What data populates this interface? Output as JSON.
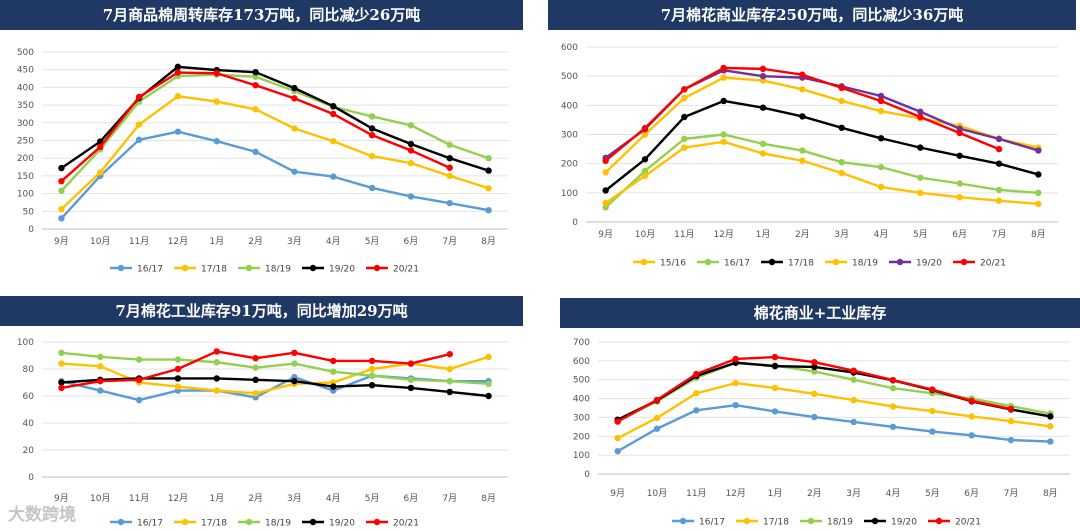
{
  "watermark": "大数跨境",
  "chart_data": [
    {
      "type": "line",
      "title": "7月商品棉周转库存173万吨，同比减少26万吨",
      "categories": [
        "9月",
        "10月",
        "11月",
        "12月",
        "1月",
        "2月",
        "3月",
        "4月",
        "5月",
        "6月",
        "7月",
        "8月"
      ],
      "ylim": [
        0,
        500
      ],
      "ystep": 50,
      "series": [
        {
          "name": "16/17",
          "color": "#5b9bd5",
          "values": [
            30,
            150,
            252,
            275,
            248,
            218,
            162,
            148,
            116,
            92,
            73,
            53
          ]
        },
        {
          "name": "17/18",
          "color": "#ffc000",
          "values": [
            56,
            160,
            295,
            375,
            360,
            338,
            284,
            248,
            206,
            186,
            150,
            115
          ]
        },
        {
          "name": "18/19",
          "color": "#92d050",
          "values": [
            108,
            225,
            360,
            432,
            436,
            430,
            390,
            345,
            318,
            293,
            238,
            200
          ]
        },
        {
          "name": "19/20",
          "color": "#000000",
          "values": [
            172,
            247,
            370,
            458,
            449,
            443,
            398,
            347,
            284,
            240,
            200,
            165
          ]
        },
        {
          "name": "20/21",
          "color": "#ff0000",
          "values": [
            135,
            232,
            373,
            442,
            440,
            406,
            369,
            325,
            265,
            222,
            173,
            null
          ]
        }
      ]
    },
    {
      "type": "line",
      "title": "7月棉花商业库存250万吨，同比减少36万吨",
      "categories": [
        "9月",
        "10月",
        "11月",
        "12月",
        "1月",
        "2月",
        "3月",
        "4月",
        "5月",
        "6月",
        "7月",
        "8月"
      ],
      "ylim": [
        0,
        600
      ],
      "ystep": 100,
      "series": [
        {
          "name": "15/16",
          "color": "#ffc000",
          "values": [
            170,
            300,
            425,
            495,
            485,
            455,
            415,
            380,
            355,
            330,
            285,
            255
          ]
        },
        {
          "name": "16/17",
          "color": "#92d050",
          "values": [
            50,
            175,
            285,
            300,
            268,
            245,
            205,
            188,
            152,
            132,
            110,
            100
          ]
        },
        {
          "name": "17/18",
          "color": "#000000",
          "values": [
            108,
            215,
            360,
            415,
            392,
            362,
            323,
            287,
            255,
            227,
            200,
            163
          ]
        },
        {
          "name": "18/19",
          "color": "#ffc000",
          "values": [
            65,
            158,
            255,
            275,
            235,
            210,
            168,
            120,
            100,
            85,
            73,
            62
          ]
        },
        {
          "name": "19/20",
          "color": "#7030a0",
          "values": [
            220,
            318,
            455,
            520,
            500,
            495,
            465,
            432,
            378,
            320,
            285,
            245
          ]
        },
        {
          "name": "20/21",
          "color": "#ff0000",
          "values": [
            210,
            322,
            455,
            528,
            525,
            505,
            460,
            415,
            360,
            305,
            250,
            null
          ]
        }
      ]
    },
    {
      "type": "line",
      "title": "7月棉花工业库存91万吨，同比增加29万吨",
      "categories": [
        "9月",
        "10月",
        "11月",
        "12月",
        "1月",
        "2月",
        "3月",
        "4月",
        "5月",
        "6月",
        "7月",
        "8月"
      ],
      "ylim": [
        0,
        100
      ],
      "ystep": 20,
      "series": [
        {
          "name": "16/17",
          "color": "#5b9bd5",
          "values": [
            71,
            64,
            57,
            64,
            64,
            59,
            74,
            64,
            75,
            73,
            71,
            71
          ]
        },
        {
          "name": "17/18",
          "color": "#ffc000",
          "values": [
            84,
            82,
            70,
            67,
            64,
            62,
            69,
            70,
            80,
            84,
            80,
            89
          ]
        },
        {
          "name": "18/19",
          "color": "#92d050",
          "values": [
            92,
            89,
            87,
            87,
            85,
            81,
            84,
            78,
            75,
            72,
            71,
            69
          ]
        },
        {
          "name": "19/20",
          "color": "#000000",
          "values": [
            70,
            72,
            73,
            73,
            73,
            72,
            71,
            67,
            68,
            66,
            63,
            60
          ]
        },
        {
          "name": "20/21",
          "color": "#ff0000",
          "values": [
            66,
            71,
            72,
            80,
            93,
            88,
            92,
            86,
            86,
            84,
            91,
            null
          ]
        }
      ]
    },
    {
      "type": "line",
      "title": "棉花商业+工业库存",
      "categories": [
        "9月",
        "10月",
        "11月",
        "12月",
        "1月",
        "2月",
        "3月",
        "4月",
        "5月",
        "6月",
        "7月",
        "8月"
      ],
      "ylim": [
        0,
        700
      ],
      "ystep": 100,
      "series": [
        {
          "name": "16/17",
          "color": "#5b9bd5",
          "values": [
            121,
            240,
            338,
            365,
            332,
            302,
            276,
            250,
            225,
            205,
            180,
            172
          ]
        },
        {
          "name": "17/18",
          "color": "#ffc000",
          "values": [
            190,
            297,
            428,
            482,
            456,
            425,
            392,
            358,
            334,
            305,
            280,
            253
          ]
        },
        {
          "name": "18/19",
          "color": "#92d050",
          "values": [
            280,
            385,
            510,
            590,
            575,
            543,
            500,
            455,
            428,
            400,
            360,
            320
          ]
        },
        {
          "name": "19/20",
          "color": "#000000",
          "values": [
            288,
            390,
            520,
            590,
            572,
            568,
            538,
            497,
            445,
            385,
            342,
            305
          ]
        },
        {
          "name": "20/21",
          "color": "#ff0000",
          "values": [
            278,
            393,
            530,
            610,
            620,
            593,
            548,
            498,
            448,
            388,
            345,
            null
          ]
        }
      ]
    }
  ]
}
